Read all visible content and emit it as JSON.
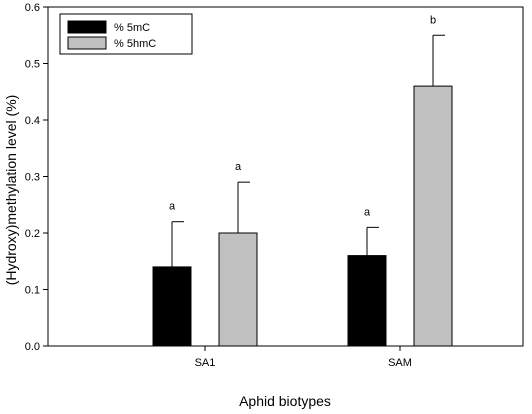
{
  "chart_data": {
    "type": "bar",
    "categories": [
      "SA1",
      "SAM"
    ],
    "series": [
      {
        "name": "% 5mC",
        "color": "#000000",
        "values": [
          0.14,
          0.16
        ],
        "errors": [
          0.08,
          0.05
        ],
        "labels": [
          "a",
          "a"
        ]
      },
      {
        "name": "% 5hmC",
        "color": "#c0c0c0",
        "values": [
          0.2,
          0.46
        ],
        "errors": [
          0.09,
          0.09
        ],
        "labels": [
          "a",
          "b"
        ]
      }
    ],
    "xlabel": "Aphid biotypes",
    "ylabel": "(Hydroxy)methylation level (%)",
    "ylim": [
      0,
      0.6
    ],
    "yticks": [
      "0.0",
      "0.1",
      "0.2",
      "0.3",
      "0.4",
      "0.5",
      "0.6"
    ],
    "legend_position": "top-left",
    "grid": false
  }
}
